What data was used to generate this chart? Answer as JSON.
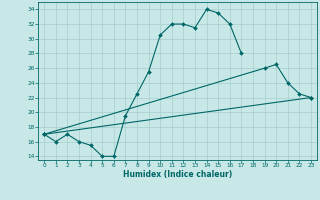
{
  "xlabel": "Humidex (Indice chaleur)",
  "xlim": [
    -0.5,
    23.5
  ],
  "ylim": [
    13.5,
    35.0
  ],
  "xticks": [
    0,
    1,
    2,
    3,
    4,
    5,
    6,
    7,
    8,
    9,
    10,
    11,
    12,
    13,
    14,
    15,
    16,
    17,
    18,
    19,
    20,
    21,
    22,
    23
  ],
  "yticks": [
    14,
    16,
    18,
    20,
    22,
    24,
    26,
    28,
    30,
    32,
    34
  ],
  "bg_color": "#c8e8e8",
  "line_color": "#006666",
  "grid_color": "#a8cece",
  "line1_x": [
    0,
    1,
    2,
    3,
    4,
    5,
    6,
    7,
    8,
    9,
    10,
    11,
    12,
    13,
    14,
    15,
    16,
    17
  ],
  "line1_y": [
    17.0,
    16.0,
    17.0,
    16.0,
    15.5,
    14.0,
    14.0,
    19.5,
    22.5,
    25.5,
    30.5,
    32.0,
    32.0,
    31.5,
    34.0,
    33.5,
    32.0,
    28.0
  ],
  "line2_x": [
    0,
    19,
    20,
    21,
    22,
    23
  ],
  "line2_y": [
    17.0,
    26.0,
    26.5,
    24.0,
    22.5,
    22.0
  ],
  "line3_x": [
    0,
    23
  ],
  "line3_y": [
    17.0,
    22.0
  ]
}
